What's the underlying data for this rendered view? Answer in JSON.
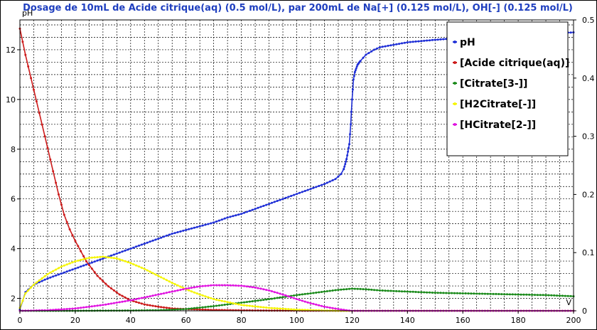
{
  "chart_data": {
    "type": "line",
    "title": "Dosage de 10mL de Acide citrique(aq) (0.5 mol/L),  par 200mL  de Na[+] (0.125 mol/L), OH[-] (0.125 mol/L)",
    "xlabel": "V",
    "ylabel": "pH",
    "xlim": [
      0,
      200
    ],
    "ylim": [
      1.5,
      13.2
    ],
    "y2lim": [
      0,
      0.5
    ],
    "x_ticks": [
      "0",
      "20",
      "40",
      "60",
      "80",
      "100",
      "120",
      "140",
      "160",
      "180",
      "200"
    ],
    "y_ticks": [
      "2",
      "4",
      "6",
      "8",
      "10",
      "12"
    ],
    "y2_ticks": [
      "0",
      "0.1",
      "0.2",
      "0.3",
      "0.4",
      "0.5"
    ],
    "grid": true,
    "legend_position": "top-right",
    "series": [
      {
        "name": "pH",
        "axis": "left",
        "color": "#1f2fd6",
        "x": [
          0,
          2,
          5,
          10,
          15,
          20,
          25,
          30,
          35,
          40,
          45,
          50,
          55,
          60,
          65,
          70,
          75,
          80,
          85,
          90,
          95,
          100,
          105,
          110,
          114,
          116,
          117,
          118,
          119,
          119.5,
          120,
          120.5,
          121,
          122,
          123,
          125,
          128,
          130,
          135,
          140,
          150,
          160,
          170,
          180,
          190,
          200
        ],
        "y": [
          1.55,
          2.25,
          2.55,
          2.8,
          3.0,
          3.2,
          3.4,
          3.6,
          3.8,
          4.0,
          4.2,
          4.4,
          4.6,
          4.75,
          4.9,
          5.05,
          5.25,
          5.4,
          5.6,
          5.8,
          6.0,
          6.2,
          6.4,
          6.6,
          6.8,
          7.0,
          7.2,
          7.6,
          8.2,
          9.0,
          10.0,
          10.8,
          11.1,
          11.4,
          11.55,
          11.8,
          12.0,
          12.1,
          12.2,
          12.3,
          12.4,
          12.48,
          12.55,
          12.6,
          12.65,
          12.7
        ]
      },
      {
        "name": "[Acide citrique(aq)]",
        "axis": "right",
        "color": "#cc1a1a",
        "x": [
          0,
          2,
          4,
          6,
          8,
          10,
          12,
          14,
          16,
          18,
          20,
          24,
          28,
          32,
          36,
          40,
          45,
          50,
          55,
          60,
          70,
          80,
          90,
          100,
          110,
          120,
          200
        ],
        "y": [
          0.485,
          0.44,
          0.4,
          0.36,
          0.32,
          0.28,
          0.24,
          0.2,
          0.165,
          0.14,
          0.12,
          0.085,
          0.06,
          0.042,
          0.028,
          0.018,
          0.011,
          0.007,
          0.004,
          0.003,
          0.0015,
          0.0008,
          0.0004,
          0.0002,
          0.0001,
          0.0,
          0.0
        ]
      },
      {
        "name": "[Citrate[3-]]",
        "axis": "right",
        "color": "#1a8a1a",
        "x": [
          0,
          20,
          40,
          50,
          60,
          70,
          80,
          90,
          100,
          110,
          115,
          120,
          125,
          130,
          140,
          150,
          160,
          170,
          180,
          190,
          200
        ],
        "y": [
          0.0,
          0.0,
          0.0005,
          0.001,
          0.003,
          0.008,
          0.014,
          0.02,
          0.027,
          0.033,
          0.036,
          0.038,
          0.037,
          0.035,
          0.033,
          0.031,
          0.03,
          0.029,
          0.028,
          0.027,
          0.025
        ]
      },
      {
        "name": "[H2Citrate[-]]",
        "axis": "right",
        "color": "#f5f500",
        "x": [
          0,
          2,
          5,
          10,
          15,
          20,
          25,
          30,
          35,
          40,
          45,
          50,
          55,
          60,
          65,
          70,
          80,
          90,
          100,
          110,
          115,
          120,
          200
        ],
        "y": [
          0.005,
          0.03,
          0.045,
          0.063,
          0.076,
          0.085,
          0.091,
          0.093,
          0.09,
          0.082,
          0.072,
          0.06,
          0.048,
          0.037,
          0.028,
          0.02,
          0.01,
          0.005,
          0.002,
          0.0005,
          0.0001,
          0.0,
          0.0
        ]
      },
      {
        "name": "[HCitrate[2-]]",
        "axis": "right",
        "color": "#e014e0",
        "x": [
          0,
          10,
          20,
          30,
          40,
          50,
          60,
          65,
          70,
          75,
          80,
          85,
          90,
          95,
          100,
          105,
          110,
          115,
          118,
          120,
          200
        ],
        "y": [
          0.0,
          0.001,
          0.004,
          0.01,
          0.018,
          0.028,
          0.038,
          0.042,
          0.044,
          0.044,
          0.043,
          0.04,
          0.035,
          0.028,
          0.02,
          0.013,
          0.007,
          0.003,
          0.001,
          0.0,
          0.0
        ]
      }
    ]
  }
}
